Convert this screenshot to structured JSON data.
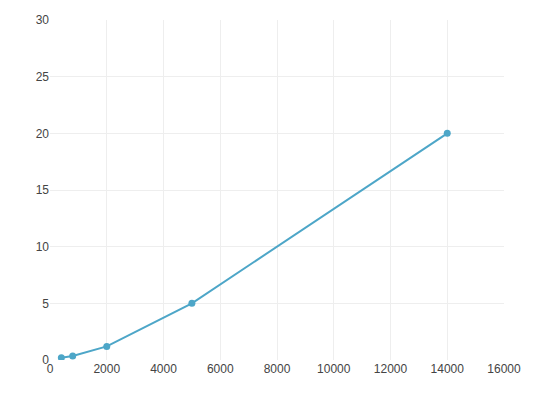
{
  "chart_data": {
    "type": "line",
    "x": [
      400,
      800,
      2000,
      5000,
      14000
    ],
    "values": [
      0.2,
      0.35,
      1.2,
      5.0,
      20.0
    ],
    "color": "#4da6c8",
    "marker": "circle",
    "xlim": [
      0,
      16000
    ],
    "ylim": [
      0,
      30
    ],
    "xticks": [
      0,
      2000,
      4000,
      6000,
      8000,
      10000,
      12000,
      14000,
      16000
    ],
    "yticks": [
      0,
      5,
      10,
      15,
      20,
      25,
      30
    ],
    "grid": true
  }
}
